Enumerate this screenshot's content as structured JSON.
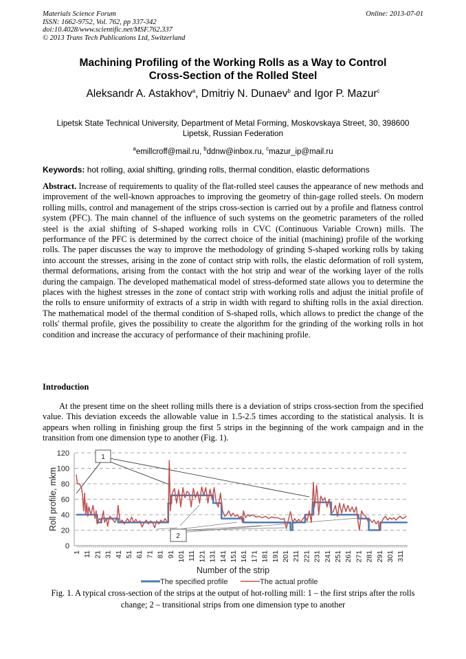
{
  "header": {
    "journal": "Materials Science Forum",
    "issn": "ISSN: 1662-9752, Vol. 762, pp 337-342",
    "doi": "doi:10.4028/www.scientific.net/MSF.762.337",
    "copyright": "© 2013 Trans Tech Publications Ltd, Switzerland",
    "online": "Online: 2013-07-01"
  },
  "title_line1": "Machining Profiling of the Working Rolls as a Way to Control",
  "title_line2": "Cross-Section of the Rolled Steel",
  "authors": [
    {
      "name": "Aleksandr A. Astakhov",
      "sup": "a"
    },
    {
      "name": "Dmitriy N. Dunaev",
      "sup": "b"
    },
    {
      "name": "Igor P. Mazur",
      "sup": "c"
    }
  ],
  "authors_sep1": ", ",
  "authors_sep2": " and ",
  "affiliation_line1": "Lipetsk State Technical University, Department of Metal Forming, Moskovskaya Street, 30, 398600",
  "affiliation_line2": "Lipetsk, Russian Federation",
  "emails": [
    {
      "sup": "a",
      "email": "emillcroff@mail.ru"
    },
    {
      "sup": "b",
      "email": "ddnw@inbox.ru"
    },
    {
      "sup": "c",
      "email": "mazur_ip@mail.ru"
    }
  ],
  "keywords_label": "Keywords:",
  "keywords": " hot rolling, axial shifting, grinding rolls, thermal condition, elastic deformations",
  "abstract_label": "Abstract.",
  "abstract": " Increase of requirements to quality of the flat-rolled steel causes the appearance of new methods and improvement of the well-known approaches to improving the geometry of thin-gage rolled steels. On modern rolling mills, control and management of the strips cross-section is carried out by a profile and flatness control system (PFC). The main channel of the influence of such systems on the geometric parameters of the rolled steel is the axial shifting of S-shaped working rolls in CVC (Continuous Variable Crown) mills. The performance of the PFC is determined by the correct choice of the initial (machining) profile of the working rolls. The paper discusses the way to improve the methodology of grinding S-shaped working rolls by taking into account the stresses, arising in the zone of contact strip with rolls, the elastic deformation of roll system, thermal deformations, arising from the contact with the hot strip and wear of the working layer of the rolls during the campaign. The developed mathematical model of stress-deformed state allows you to determine the places with the highest stresses in the zone of contact strip with working rolls and adjust the initial profile of the rolls to ensure uniformity of extracts of a strip in width with regard to shifting rolls in the axial direction. The mathematical model of the thermal condition of S-shaped rolls, which allows to predict the change of the rolls' thermal profile, gives the possibility to create the algorithm for the grinding of the working rolls in hot condition and increase the accuracy of performance of their machining profile.",
  "intro_heading": "Introduction",
  "intro_text": "At the present time on the sheet rolling mills there is a deviation of strips cross-section from the specified value. This deviation exceeds the allowable value in 1.5-2.5 times according to the statistical analysis. It is appears when rolling in finishing group the first 5 strips in the beginning of the work campaign and in the transition from one dimension type to another (Fig. 1).",
  "caption": "Fig. 1. A typical cross-section of the strips at the output of hot-rolling mill: 1 – the first strips after the rolls change; 2 – transitional strips from one dimension type to another",
  "chart_data": {
    "type": "line",
    "xlabel": "Number of the strip",
    "ylabel": "Roll profile, mkm",
    "ylim": [
      0,
      120
    ],
    "yticks": [
      "0",
      "20",
      "40",
      "60",
      "80",
      "100",
      "120"
    ],
    "xticks": [
      "1",
      "11",
      "21",
      "31",
      "41",
      "51",
      "61",
      "71",
      "81",
      "91",
      "101",
      "111",
      "121",
      "131",
      "141",
      "151",
      "161",
      "171",
      "181",
      "191",
      "201",
      "211",
      "221",
      "231",
      "241",
      "251",
      "261",
      "271",
      "281",
      "291",
      "301",
      "311"
    ],
    "xlim": [
      1,
      318
    ],
    "grid": "horizontal dashed",
    "legend": "bottom",
    "annotations": [
      "1",
      "2"
    ],
    "series": [
      {
        "name": "The specified profile",
        "color": "#4a7ebb",
        "style": "step",
        "x": [
          1,
          21,
          25,
          41,
          89,
          92,
          132,
          140,
          161,
          206,
          208,
          220,
          228,
          245,
          271,
          281,
          292,
          318
        ],
        "y": [
          40,
          30,
          35,
          30,
          55,
          65,
          55,
          35,
          30,
          20,
          30,
          40,
          56,
          40,
          35,
          20,
          30,
          30
        ]
      },
      {
        "name": "The actual profile",
        "color": "#c0504d",
        "x": [
          1,
          2,
          4,
          6,
          7,
          8,
          9,
          10,
          11,
          12,
          13,
          15,
          17,
          19,
          20,
          21,
          23,
          25,
          27,
          28,
          30,
          31,
          33,
          35,
          38,
          40,
          41,
          43,
          45,
          47,
          50,
          52,
          54,
          56,
          58,
          60,
          62,
          64,
          66,
          68,
          70,
          72,
          74,
          76,
          78,
          80,
          82,
          84,
          86,
          88,
          89,
          90,
          91,
          92,
          93,
          95,
          97,
          99,
          101,
          103,
          105,
          107,
          109,
          111,
          113,
          115,
          117,
          119,
          121,
          123,
          125,
          127,
          129,
          131,
          133,
          135,
          137,
          139,
          141,
          143,
          145,
          147,
          149,
          151,
          153,
          155,
          157,
          159,
          160,
          161,
          163,
          165,
          167,
          170,
          173,
          176,
          179,
          182,
          185,
          188,
          191,
          194,
          197,
          200,
          202,
          204,
          206,
          208,
          210,
          212,
          214,
          216,
          218,
          220,
          222,
          224,
          226,
          228,
          229,
          230,
          231,
          232,
          233,
          235,
          237,
          239,
          241,
          243,
          245,
          247,
          249,
          251,
          253,
          255,
          257,
          259,
          261,
          263,
          265,
          267,
          269,
          271,
          272,
          274,
          276,
          278,
          280,
          282,
          284,
          286,
          288,
          290,
          291,
          293,
          295,
          297,
          299,
          301,
          303,
          305,
          307,
          309,
          311,
          313,
          315,
          317
        ],
        "y": [
          92,
          80,
          80,
          75,
          65,
          45,
          68,
          40,
          55,
          38,
          50,
          40,
          52,
          35,
          45,
          28,
          35,
          32,
          45,
          30,
          35,
          25,
          38,
          35,
          30,
          36,
          52,
          30,
          33,
          28,
          35,
          30,
          37,
          30,
          34,
          30,
          32,
          24,
          30,
          33,
          28,
          32,
          30,
          23,
          32,
          28,
          33,
          30,
          35,
          30,
          33,
          110,
          45,
          60,
          68,
          74,
          55,
          72,
          50,
          75,
          62,
          70,
          68,
          50,
          74,
          62,
          70,
          55,
          76,
          65,
          75,
          55,
          73,
          60,
          75,
          55,
          50,
          68,
          45,
          38,
          40,
          45,
          38,
          42,
          38,
          40,
          36,
          38,
          30,
          45,
          36,
          40,
          38,
          40,
          37,
          38,
          36,
          38,
          35,
          37,
          36,
          36,
          34,
          35,
          22,
          33,
          44,
          30,
          35,
          31,
          34,
          30,
          35,
          38,
          32,
          45,
          30,
          82,
          50,
          60,
          78,
          65,
          40,
          64,
          58,
          62,
          50,
          60,
          42,
          44,
          52,
          38,
          55,
          42,
          54,
          44,
          52,
          44,
          50,
          43,
          50,
          28,
          20,
          45,
          40,
          38,
          32,
          34,
          30,
          33,
          28,
          32,
          20,
          30,
          35,
          38,
          33,
          36,
          34,
          36,
          33,
          36,
          38,
          35,
          36,
          38
        ]
      }
    ]
  }
}
